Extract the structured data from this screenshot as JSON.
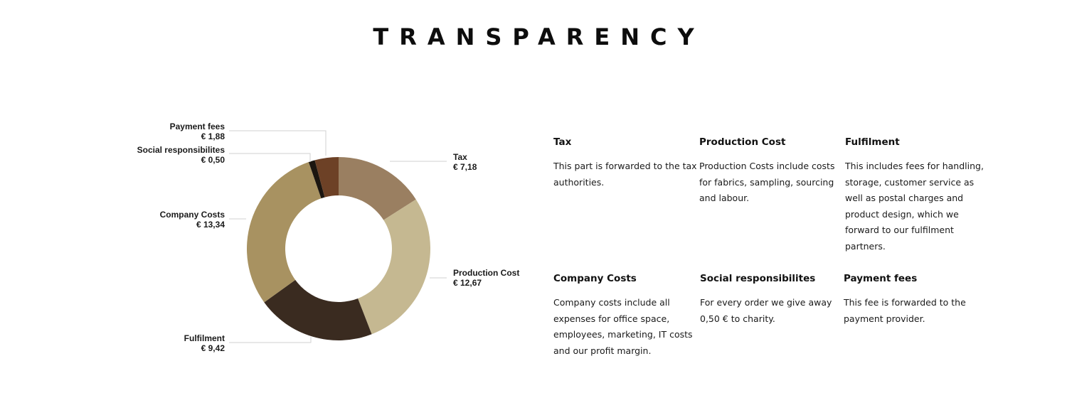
{
  "title": "TRANSPARENCY",
  "chart_data": {
    "type": "pie",
    "variant": "donut",
    "start": "top",
    "direction": "clockwise",
    "slices": [
      {
        "label": "Tax",
        "value_label": "€ 7,18",
        "value": 7.18,
        "color": "#9a7f61"
      },
      {
        "label": "Production Cost",
        "value_label": "€ 12,67",
        "value": 12.67,
        "color": "#c5b891"
      },
      {
        "label": "Fulfilment",
        "value_label": "€ 9,42",
        "value": 9.42,
        "color": "#3a2b20"
      },
      {
        "label": "Company Costs",
        "value_label": "€ 13,34",
        "value": 13.34,
        "color": "#a89261"
      },
      {
        "label": "Social responsibilites",
        "value_label": "€ 0,50",
        "value": 0.5,
        "color": "#1c1610"
      },
      {
        "label": "Payment fees",
        "value_label": "€ 1,88",
        "value": 1.88,
        "color": "#6d4126"
      }
    ]
  },
  "descriptions": [
    {
      "title": "Tax",
      "body": "This part is forwarded to the tax authorities."
    },
    {
      "title": "Production Cost",
      "body": "Production Costs include costs for fabrics, sampling, sourcing and labour."
    },
    {
      "title": "Fulfilment",
      "body": "This includes fees for handling, storage, customer service as well as postal charges and product design, which we forward to our fulfilment partners."
    },
    {
      "title": "Company Costs",
      "body": "Company costs include all expenses for office space, employees, marketing, IT costs and our profit margin."
    },
    {
      "title": "Social responsibilites",
      "body": "For every order we give away 0,50 € to charity."
    },
    {
      "title": "Payment fees",
      "body": "This fee is forwarded to the payment provider."
    }
  ]
}
